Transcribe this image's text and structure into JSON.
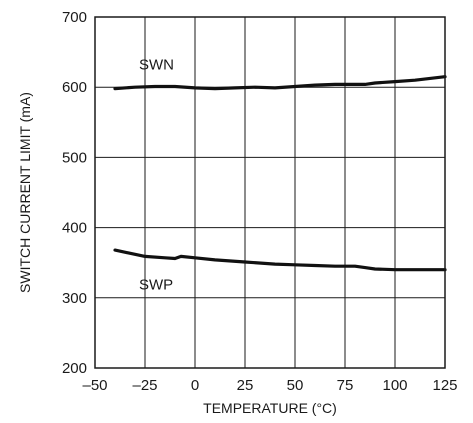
{
  "chart_data": {
    "type": "line",
    "xlabel": "TEMPERATURE (°C)",
    "ylabel": "SWITCH CURRENT LIMIT (mA)",
    "xlim": [
      -50,
      125
    ],
    "ylim": [
      200,
      700
    ],
    "xticks": [
      "–50",
      "–25",
      "0",
      "25",
      "50",
      "75",
      "100",
      "125"
    ],
    "yticks": [
      "200",
      "300",
      "400",
      "500",
      "600",
      "700"
    ],
    "grid": true,
    "series": [
      {
        "name": "SWN",
        "x": [
          -40,
          -30,
          -20,
          -10,
          0,
          10,
          20,
          30,
          40,
          50,
          60,
          70,
          80,
          85,
          90,
          100,
          110,
          125
        ],
        "y": [
          598,
          600,
          601,
          601,
          599,
          598,
          599,
          600,
          599,
          601,
          603,
          604,
          604,
          604,
          606,
          608,
          610,
          615
        ]
      },
      {
        "name": "SWP",
        "x": [
          -40,
          -30,
          -25,
          -15,
          -10,
          -7,
          0,
          10,
          25,
          40,
          50,
          60,
          70,
          80,
          85,
          90,
          100,
          110,
          125
        ],
        "y": [
          368,
          362,
          359,
          357,
          356,
          359,
          357,
          354,
          351,
          348,
          347,
          346,
          345,
          345,
          343,
          341,
          340,
          340,
          340
        ]
      }
    ]
  }
}
